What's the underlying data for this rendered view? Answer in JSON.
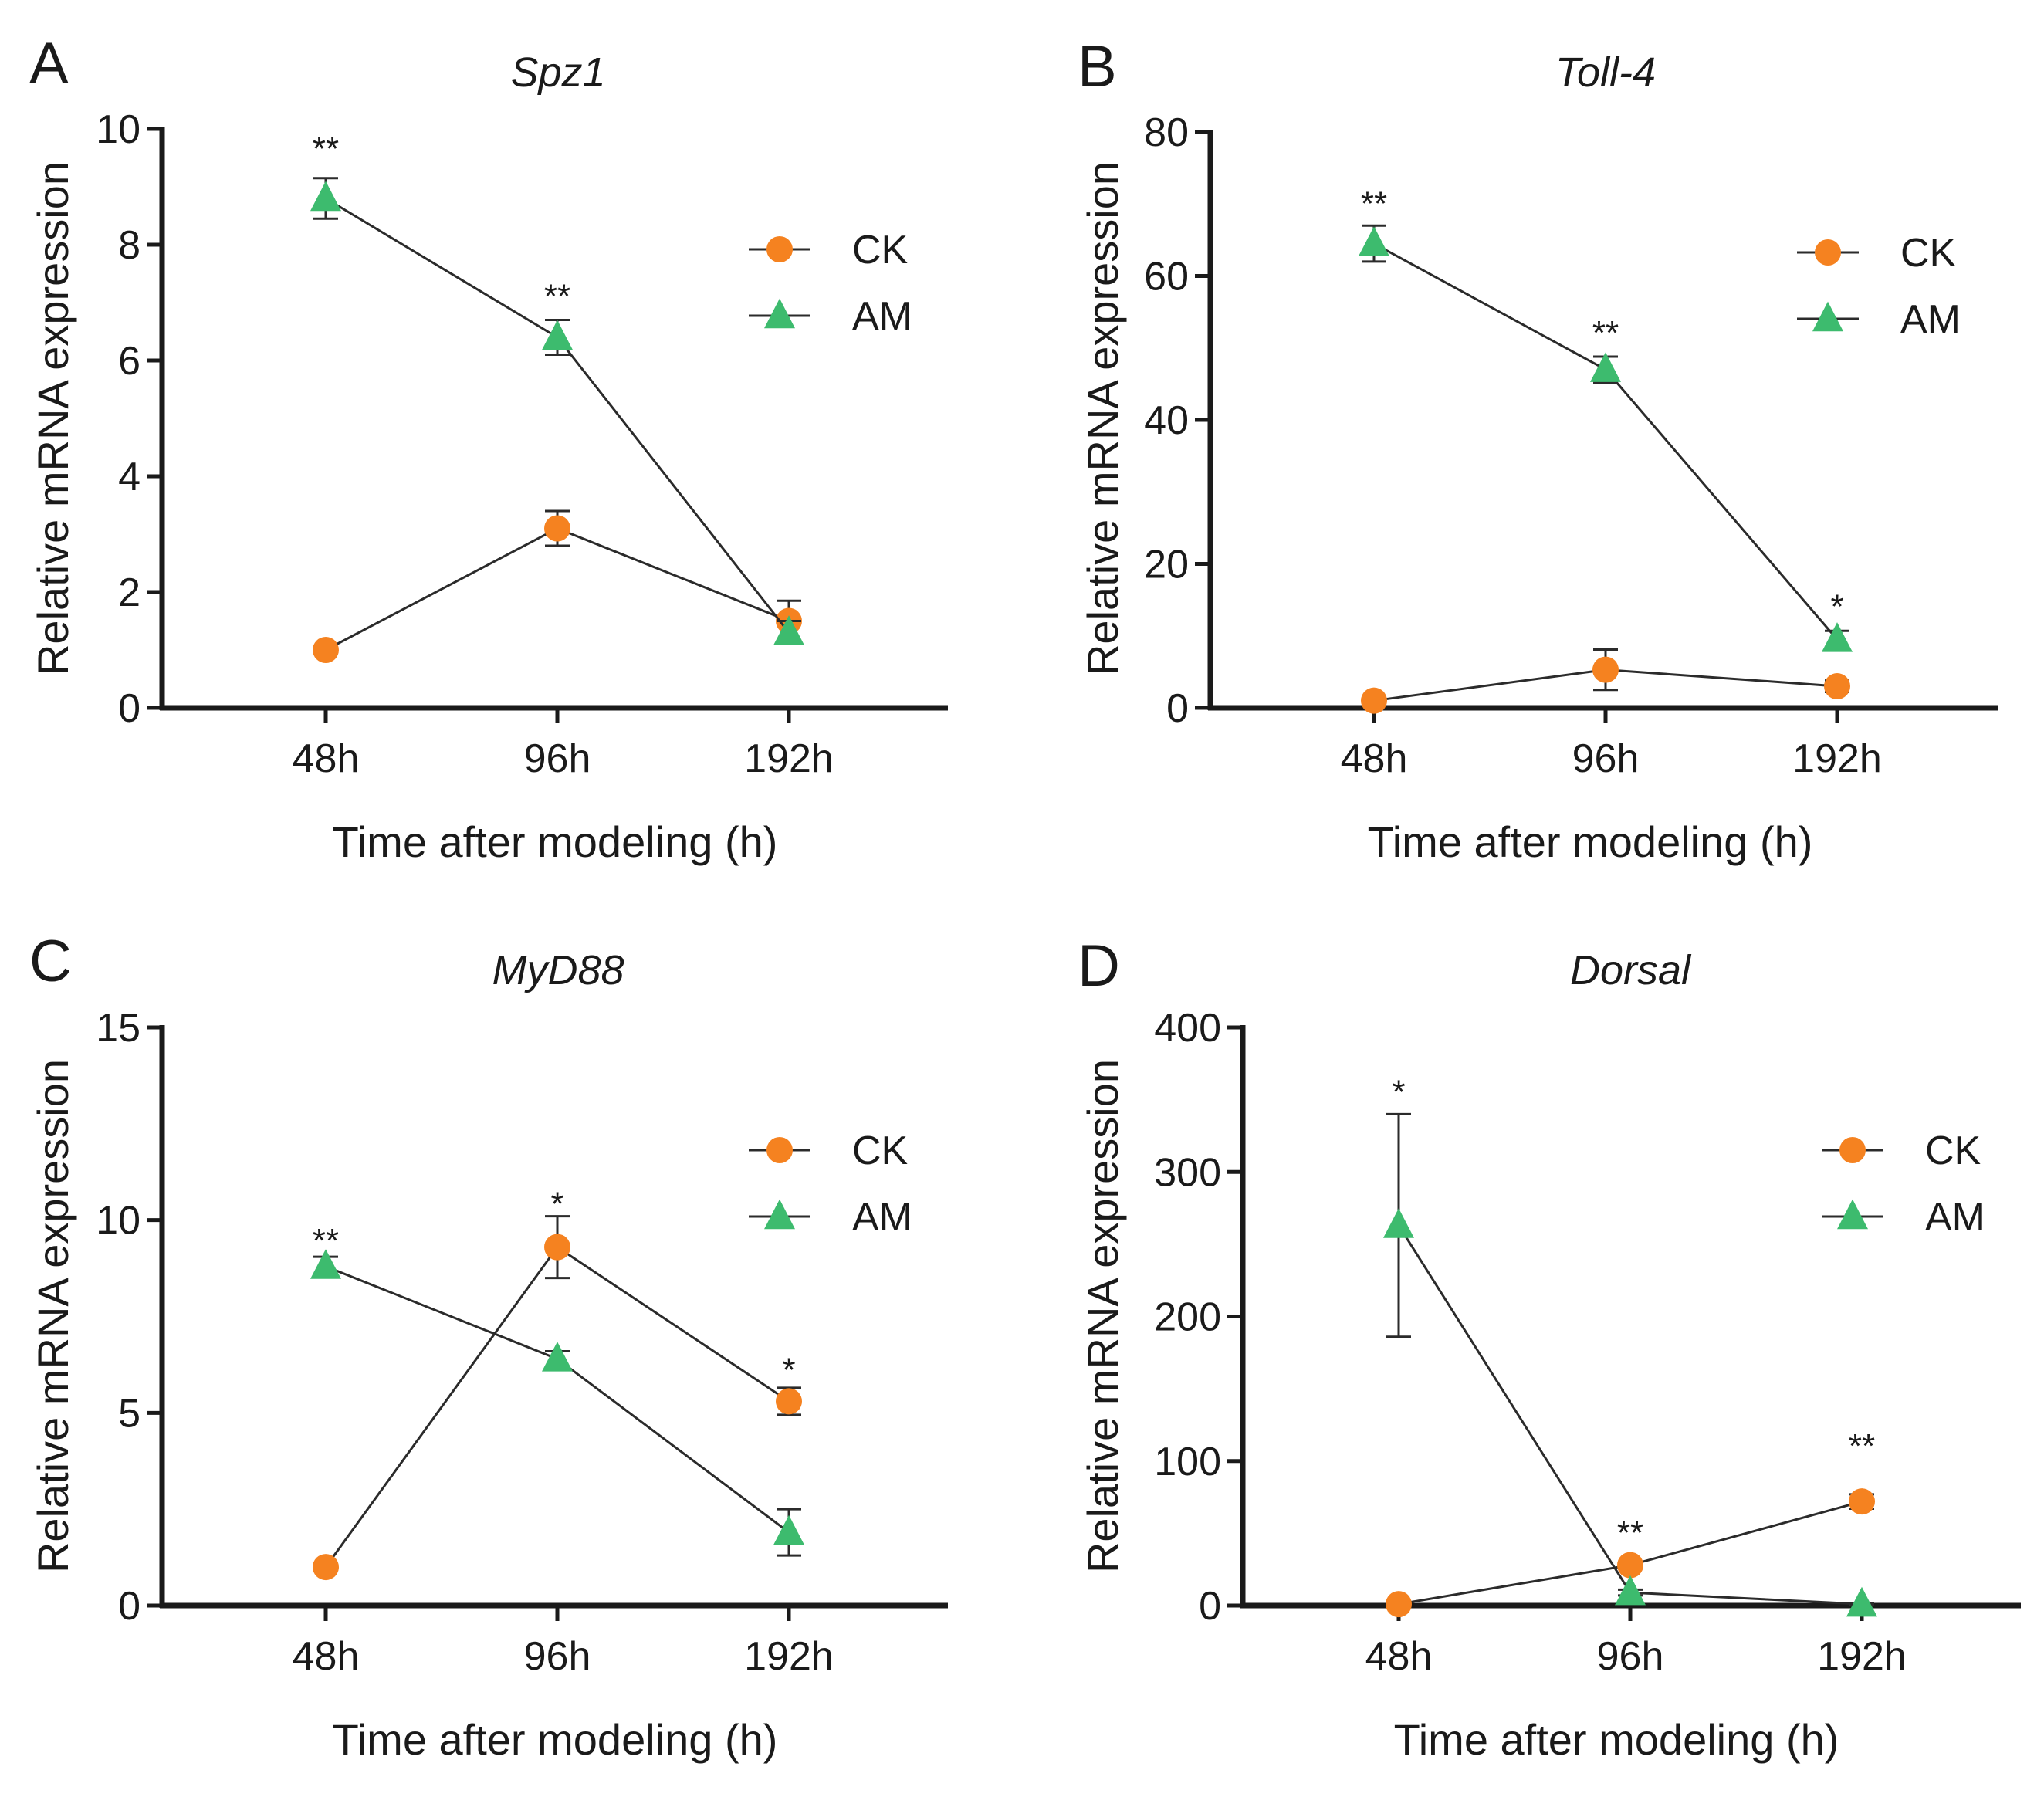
{
  "chart_data": [
    {
      "type": "line",
      "panel_letter": "A",
      "title": "Spz1",
      "xlabel": "Time after modeling (h)",
      "ylabel": "Relative mRNA expression",
      "categories": [
        "48h",
        "96h",
        "192h"
      ],
      "ylim": [
        0,
        10
      ],
      "yticks": [
        0,
        2,
        4,
        6,
        8,
        10
      ],
      "ytick_labels": [
        "0",
        "2",
        "4",
        "6",
        "8",
        "10"
      ],
      "legend_position": "top-right",
      "series": [
        {
          "name": "CK",
          "marker": "circle",
          "color": "#f58220",
          "values": [
            1.0,
            3.1,
            1.5
          ],
          "errors": [
            0.0,
            0.3,
            0.35
          ]
        },
        {
          "name": "AM",
          "marker": "triangle",
          "color": "#3dbb6e",
          "values": [
            8.8,
            6.4,
            1.3
          ],
          "errors": [
            0.35,
            0.3,
            0.2
          ]
        }
      ],
      "annotations": [
        {
          "category": "48h",
          "text": "**",
          "value": 9.65
        },
        {
          "category": "96h",
          "text": "**",
          "value": 7.1
        }
      ]
    },
    {
      "type": "line",
      "panel_letter": "B",
      "title": "Toll-4",
      "xlabel": "Time after modeling (h)",
      "ylabel": "Relative mRNA expression",
      "categories": [
        "48h",
        "96h",
        "192h"
      ],
      "ylim": [
        0,
        80
      ],
      "yticks": [
        0,
        20,
        40,
        60,
        80
      ],
      "ytick_labels": [
        "0",
        "20",
        "40",
        "60",
        "80"
      ],
      "legend_position": "top-right",
      "series": [
        {
          "name": "CK",
          "marker": "circle",
          "color": "#f58220",
          "values": [
            1.0,
            5.3,
            3.0
          ],
          "errors": [
            0.0,
            2.8,
            0.8
          ]
        },
        {
          "name": "AM",
          "marker": "triangle",
          "color": "#3dbb6e",
          "values": [
            64.5,
            47.0,
            9.5
          ],
          "errors": [
            2.5,
            1.8,
            1.2
          ]
        }
      ],
      "annotations": [
        {
          "category": "48h",
          "text": "**",
          "value": 70.0
        },
        {
          "category": "96h",
          "text": "**",
          "value": 52.0
        },
        {
          "category": "192h",
          "text": "*",
          "value": 14.0
        }
      ]
    },
    {
      "type": "line",
      "panel_letter": "C",
      "title": "MyD88",
      "xlabel": "Time after modeling (h)",
      "ylabel": "Relative mRNA expression",
      "categories": [
        "48h",
        "96h",
        "192h"
      ],
      "ylim": [
        0,
        15
      ],
      "yticks": [
        0,
        5,
        10,
        15
      ],
      "ytick_labels": [
        "0",
        "5",
        "10",
        "15"
      ],
      "legend_position": "top-right",
      "series": [
        {
          "name": "CK",
          "marker": "circle",
          "color": "#f58220",
          "values": [
            1.0,
            9.3,
            5.3
          ],
          "errors": [
            0.0,
            0.8,
            0.35
          ]
        },
        {
          "name": "AM",
          "marker": "triangle",
          "color": "#3dbb6e",
          "values": [
            8.8,
            6.4,
            1.9
          ],
          "errors": [
            0.25,
            0.2,
            0.6
          ]
        }
      ],
      "annotations": [
        {
          "category": "48h",
          "text": "**",
          "value": 9.45
        },
        {
          "category": "96h",
          "text": "*",
          "value": 10.4
        },
        {
          "category": "192h",
          "text": "*",
          "value": 6.1
        }
      ]
    },
    {
      "type": "line",
      "panel_letter": "D",
      "title": "Dorsal",
      "xlabel": "Time after modeling (h)",
      "ylabel": "Relative mRNA expression",
      "categories": [
        "48h",
        "96h",
        "192h"
      ],
      "ylim": [
        0,
        400
      ],
      "yticks": [
        0,
        100,
        200,
        300,
        400
      ],
      "ytick_labels": [
        "0",
        "100",
        "200",
        "300",
        "400"
      ],
      "legend_position": "top-right",
      "series": [
        {
          "name": "CK",
          "marker": "circle",
          "color": "#f58220",
          "values": [
            1.0,
            28.0,
            72.0
          ],
          "errors": [
            0.0,
            2.0,
            5.0
          ]
        },
        {
          "name": "AM",
          "marker": "triangle",
          "color": "#3dbb6e",
          "values": [
            263.0,
            9.0,
            1.0
          ],
          "errors": [
            77.0,
            2.0,
            0.5
          ]
        }
      ],
      "annotations": [
        {
          "category": "48h",
          "text": "*",
          "value": 355
        },
        {
          "category": "96h",
          "text": "**",
          "value": 50
        },
        {
          "category": "192h",
          "text": "**",
          "value": 110
        }
      ]
    }
  ]
}
